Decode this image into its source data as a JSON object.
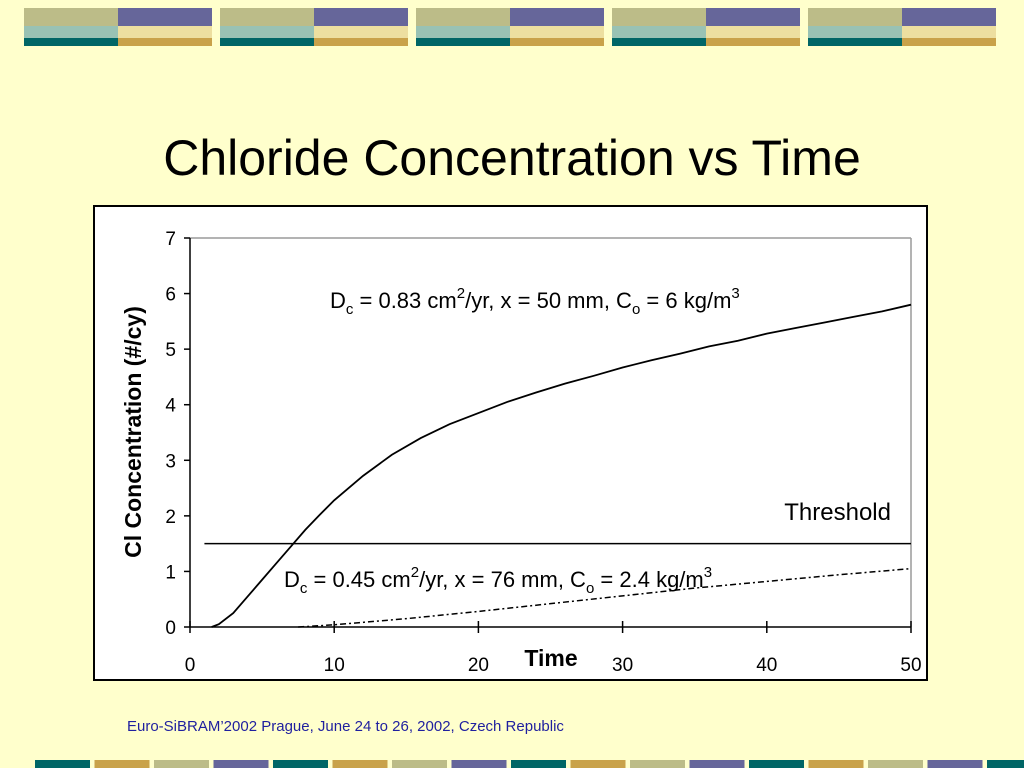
{
  "slide": {
    "title": "Chloride Concentration vs Time",
    "footer": "Euro-SiBRAM’2002 Prague, June 24 to 26, 2002, Czech Republic",
    "colors": {
      "background": "#FFFFCC",
      "band_teal": "#006666",
      "band_gold": "#C9A24A",
      "band_navy": "#66669A",
      "band_sage": "#BCBC88",
      "band_light_teal": "#99C2B4",
      "band_cream": "#EDDFA0",
      "footer_text": "#1F1F9F"
    }
  },
  "chart_data": {
    "type": "line",
    "title": "",
    "xlabel": "Time",
    "ylabel": "Cl Concentration (#/cy)",
    "xlim": [
      0,
      50
    ],
    "ylim": [
      0,
      7
    ],
    "xticks": [
      0,
      10,
      20,
      30,
      40,
      50
    ],
    "yticks": [
      0,
      1,
      2,
      3,
      4,
      5,
      6,
      7
    ],
    "grid": false,
    "threshold": {
      "label": "Threshold",
      "value": 1.5,
      "x_range": [
        1,
        50
      ]
    },
    "series": [
      {
        "name": "",
        "label_parts": {
          "D": "D",
          "sub1": "c",
          "mid1": " = 0.83 cm",
          "sup1": "2",
          "mid2": "/yr, x = 50 mm, C",
          "sub2": "o",
          "mid3": " = 6 kg/m",
          "sup2": "3"
        },
        "style": "solid",
        "x": [
          1.5,
          2,
          3,
          4,
          5,
          6,
          7,
          8,
          9,
          10,
          12,
          14,
          16,
          18,
          20,
          22,
          24,
          26,
          28,
          30,
          32,
          34,
          36,
          38,
          40,
          42,
          44,
          46,
          48,
          50
        ],
        "y": [
          0,
          0.05,
          0.25,
          0.55,
          0.85,
          1.15,
          1.45,
          1.75,
          2.02,
          2.28,
          2.72,
          3.1,
          3.4,
          3.65,
          3.85,
          4.05,
          4.22,
          4.38,
          4.52,
          4.67,
          4.8,
          4.92,
          5.05,
          5.15,
          5.28,
          5.38,
          5.48,
          5.58,
          5.68,
          5.8
        ]
      },
      {
        "name": "",
        "label_parts": {
          "D": "D",
          "sub1": "c",
          "mid1": " = 0.45 cm",
          "sup1": "2",
          "mid2": "/yr, x = 76 mm, C",
          "sub2": "o",
          "mid3": " = 2.4 kg/m",
          "sup2": "3"
        },
        "style": "dashdot",
        "x": [
          7.5,
          10,
          15,
          20,
          25,
          30,
          35,
          40,
          45,
          50
        ],
        "y": [
          0,
          0.04,
          0.15,
          0.28,
          0.42,
          0.56,
          0.7,
          0.82,
          0.94,
          1.05
        ]
      }
    ]
  }
}
